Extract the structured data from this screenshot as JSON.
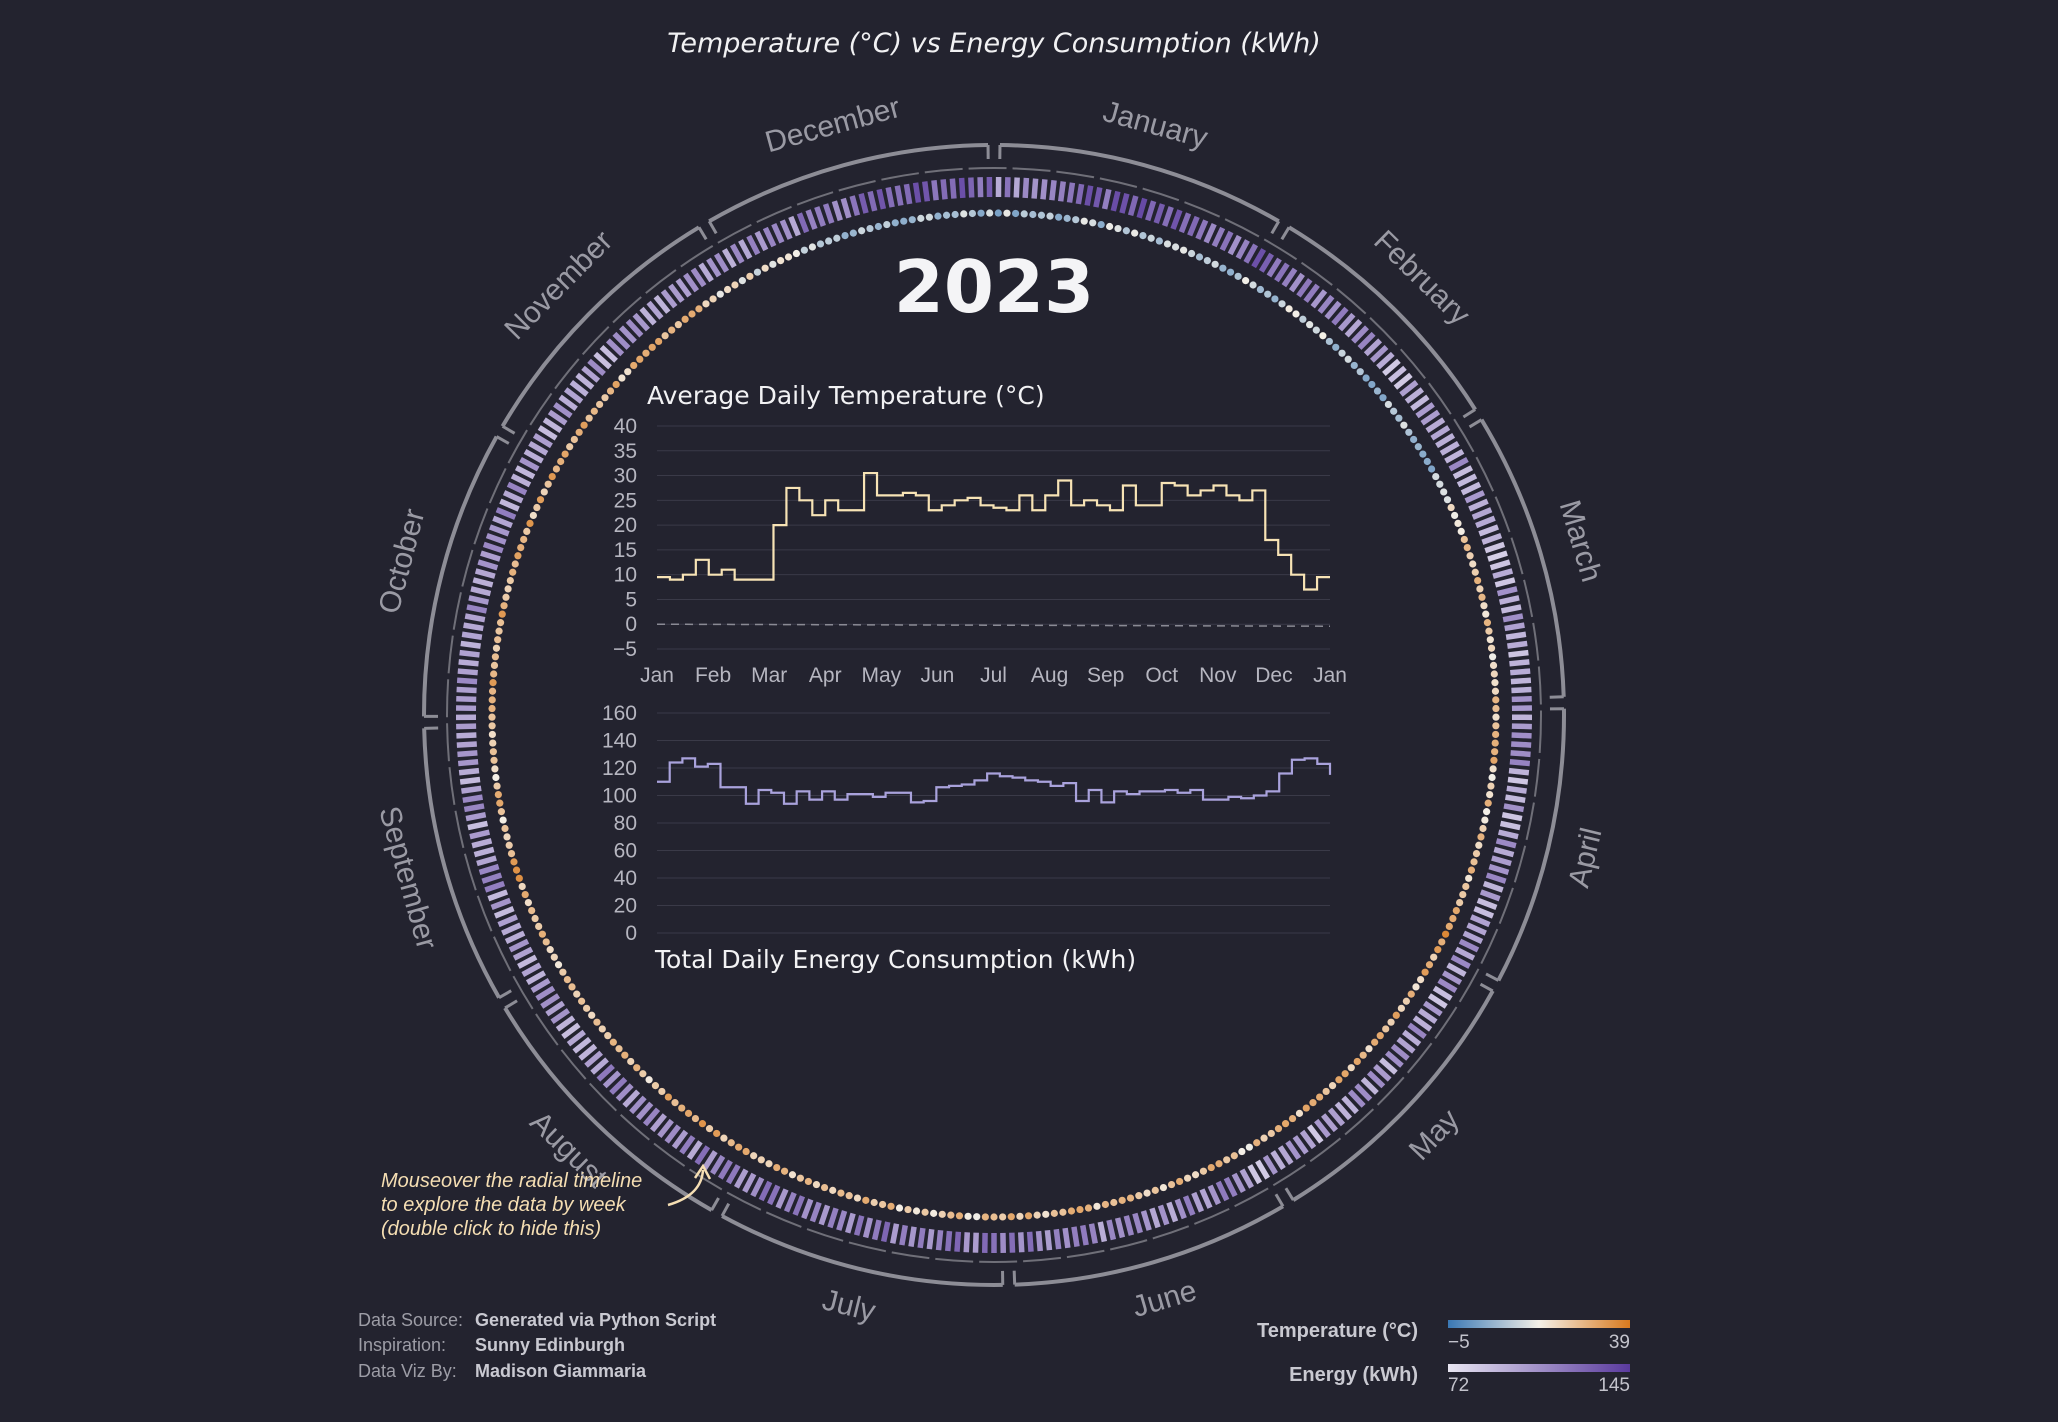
{
  "title": "Temperature (°C) vs Energy Consumption (kWh)",
  "year": "2023",
  "months": [
    "January",
    "February",
    "March",
    "April",
    "May",
    "June",
    "July",
    "August",
    "September",
    "October",
    "November",
    "December"
  ],
  "note": {
    "lines": [
      "Mouseover the radial timeline",
      "to explore the data by week",
      "(double click to hide this)"
    ]
  },
  "footer": [
    {
      "key": "Data Source:",
      "value": "Generated via Python Script"
    },
    {
      "key": "Inspiration:",
      "value": "Sunny Edinburgh"
    },
    {
      "key": "Data Viz By:",
      "value": "Madison Giammaria"
    }
  ],
  "legend": {
    "temperature": {
      "title": "Temperature (°C)",
      "min": "−5",
      "max": "39",
      "colors": [
        "#3a78b5",
        "#f4f0e8",
        "#d97a1e"
      ]
    },
    "energy": {
      "title": "Energy (kWh)",
      "min": "72",
      "max": "145",
      "colors": [
        "#e8e6f2",
        "#5a3a9e"
      ]
    }
  },
  "colors": {
    "background": "#23232f",
    "ring": "#8d8d96",
    "temp_line": "#f7e3b5",
    "energy_line": "#a9a2dc",
    "grid": "#3a3a48"
  },
  "chart_data": [
    {
      "type": "line",
      "title": "Average Daily Temperature (°C)",
      "xlabel": "",
      "ylabel": "",
      "x_ticks": [
        "Jan",
        "Feb",
        "Mar",
        "Apr",
        "May",
        "Jun",
        "Jul",
        "Aug",
        "Sep",
        "Oct",
        "Nov",
        "Dec",
        "Jan"
      ],
      "y_ticks": [
        "40",
        "35",
        "30",
        "25",
        "20",
        "15",
        "10",
        "5",
        "0",
        "−5"
      ],
      "ylim": [
        -5,
        40
      ],
      "step": true,
      "grid": true,
      "reference_line": 0,
      "series": [
        {
          "x_week": [
            0,
            1,
            2,
            3,
            4,
            5,
            6,
            7,
            8,
            9,
            10,
            11,
            12,
            13,
            14,
            15,
            16,
            17,
            18,
            19,
            20,
            21,
            22,
            23,
            24,
            25,
            26,
            27,
            28,
            29,
            30,
            31,
            32,
            33,
            34,
            35,
            36,
            37,
            38,
            39,
            40,
            41,
            42,
            43,
            44,
            45,
            46,
            47,
            48,
            49,
            50,
            51,
            52
          ],
          "values": [
            9.5,
            9,
            10,
            13,
            10,
            11,
            9,
            9,
            9,
            20,
            27.5,
            25,
            22,
            25,
            23,
            23,
            30.5,
            26,
            26,
            26.5,
            26,
            23,
            24,
            25,
            25.5,
            24,
            23.5,
            23,
            26,
            23,
            26,
            29,
            24,
            25,
            24,
            23,
            28,
            24,
            24,
            28.5,
            28,
            26,
            27,
            28,
            26,
            25,
            27,
            17,
            14,
            10,
            7,
            9.5,
            9.5
          ]
        }
      ]
    },
    {
      "type": "line",
      "title": "Total Daily Energy Consumption (kWh)",
      "xlabel": "",
      "ylabel": "",
      "y_ticks": [
        "160",
        "140",
        "120",
        "100",
        "80",
        "60",
        "40",
        "20",
        "0"
      ],
      "ylim": [
        0,
        160
      ],
      "step": true,
      "grid": true,
      "series": [
        {
          "values": [
            110,
            124,
            127,
            121,
            123,
            106,
            106,
            94,
            104,
            102,
            94,
            103,
            97,
            103,
            97,
            101,
            101,
            99,
            102,
            102,
            95,
            96,
            106,
            107,
            108,
            111,
            116,
            114,
            113,
            111,
            110,
            107,
            109,
            96,
            104,
            95,
            103,
            101,
            103,
            103,
            104,
            102,
            104,
            97,
            97,
            99,
            98,
            100,
            103,
            116,
            126,
            127,
            123,
            115
          ]
        }
      ]
    },
    {
      "type": "radial",
      "description_rings": [
        "energy bars (weekly, per day)",
        "temperature dots (per day)"
      ],
      "temperature_range": [
        -5,
        39
      ],
      "energy_range": [
        72,
        145
      ]
    }
  ]
}
